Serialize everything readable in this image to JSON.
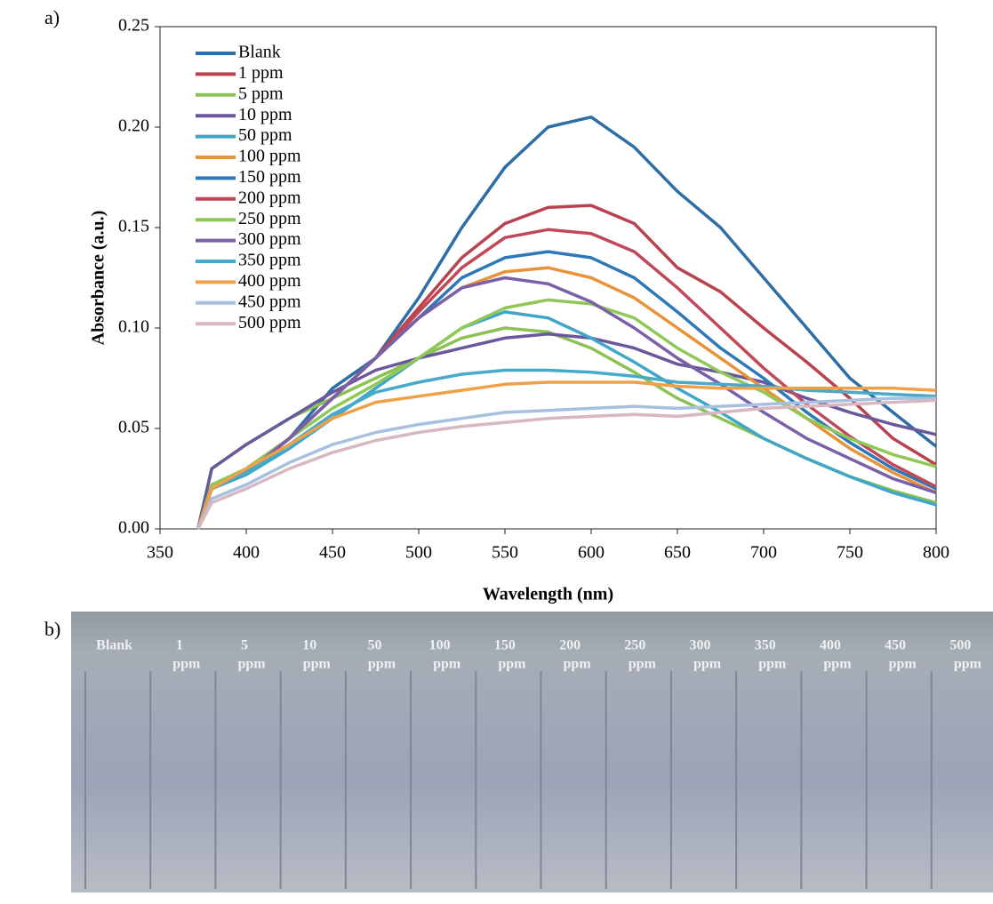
{
  "panel_labels": [
    "a)",
    "b)"
  ],
  "chart_data": {
    "type": "line",
    "x_label": "Wavelength (nm)",
    "y_label": "Absorbance (a.u.)",
    "xlim": [
      350,
      800
    ],
    "xticks": [
      350,
      400,
      450,
      500,
      550,
      600,
      650,
      700,
      750,
      800
    ],
    "ylim": [
      0,
      0.25
    ],
    "yticks": [
      {
        "value": 0,
        "label": "0.00"
      },
      {
        "value": 0.05,
        "label": "0.05"
      },
      {
        "value": 0.1,
        "label": "0.10"
      },
      {
        "value": 0.15,
        "label": "0.15"
      },
      {
        "value": 0.2,
        "label": "0.20"
      },
      {
        "value": 0.25,
        "label": "0.25"
      }
    ],
    "grid": false,
    "legend": "upper-left",
    "x": [
      372,
      380,
      400,
      425,
      450,
      475,
      500,
      525,
      550,
      575,
      600,
      625,
      650,
      675,
      700,
      725,
      750,
      775,
      800
    ],
    "series": [
      {
        "name": "Blank",
        "color": "#2e6ea6",
        "values": [
          0,
          0.02,
          0.028,
          0.045,
          0.07,
          0.085,
          0.115,
          0.15,
          0.18,
          0.2,
          0.205,
          0.19,
          0.168,
          0.15,
          0.125,
          0.1,
          0.075,
          0.058,
          0.041
        ]
      },
      {
        "name": "1 ppm",
        "color": "#b8434e",
        "values": [
          0,
          0.02,
          0.03,
          0.045,
          0.065,
          0.085,
          0.11,
          0.135,
          0.152,
          0.16,
          0.161,
          0.152,
          0.13,
          0.118,
          0.1,
          0.083,
          0.065,
          0.045,
          0.032
        ]
      },
      {
        "name": "5 ppm",
        "color": "#8cc153",
        "values": [
          0,
          0.03,
          0.042,
          0.055,
          0.065,
          0.075,
          0.085,
          0.095,
          0.1,
          0.098,
          0.09,
          0.078,
          0.065,
          0.055,
          0.045,
          0.035,
          0.026,
          0.019,
          0.013
        ]
      },
      {
        "name": "10 ppm",
        "color": "#6b579b",
        "values": [
          0,
          0.03,
          0.042,
          0.055,
          0.068,
          0.079,
          0.085,
          0.09,
          0.095,
          0.097,
          0.095,
          0.09,
          0.082,
          0.078,
          0.073,
          0.065,
          0.058,
          0.052,
          0.047
        ]
      },
      {
        "name": "50 ppm",
        "color": "#3ea6c6",
        "values": [
          0,
          0.02,
          0.027,
          0.04,
          0.055,
          0.07,
          0.085,
          0.1,
          0.108,
          0.105,
          0.095,
          0.083,
          0.07,
          0.058,
          0.045,
          0.035,
          0.026,
          0.018,
          0.012
        ]
      },
      {
        "name": "100 ppm",
        "color": "#e8923a",
        "values": [
          0,
          0.02,
          0.03,
          0.045,
          0.065,
          0.085,
          0.105,
          0.12,
          0.128,
          0.13,
          0.125,
          0.115,
          0.1,
          0.085,
          0.07,
          0.055,
          0.04,
          0.028,
          0.018
        ]
      },
      {
        "name": "150 ppm",
        "color": "#2e78b8",
        "values": [
          0,
          0.02,
          0.028,
          0.045,
          0.065,
          0.085,
          0.105,
          0.125,
          0.135,
          0.138,
          0.135,
          0.125,
          0.108,
          0.09,
          0.075,
          0.058,
          0.043,
          0.03,
          0.02
        ]
      },
      {
        "name": "200 ppm",
        "color": "#c04858",
        "values": [
          0,
          0.02,
          0.028,
          0.045,
          0.065,
          0.085,
          0.108,
          0.13,
          0.145,
          0.149,
          0.147,
          0.138,
          0.12,
          0.1,
          0.08,
          0.062,
          0.046,
          0.032,
          0.021
        ]
      },
      {
        "name": "250 ppm",
        "color": "#90c858",
        "values": [
          0,
          0.022,
          0.03,
          0.045,
          0.06,
          0.072,
          0.085,
          0.1,
          0.11,
          0.114,
          0.112,
          0.105,
          0.09,
          0.078,
          0.068,
          0.055,
          0.045,
          0.037,
          0.031
        ]
      },
      {
        "name": "300 ppm",
        "color": "#7a60a8",
        "values": [
          0,
          0.02,
          0.028,
          0.045,
          0.065,
          0.085,
          0.105,
          0.12,
          0.125,
          0.122,
          0.113,
          0.1,
          0.085,
          0.072,
          0.058,
          0.045,
          0.035,
          0.025,
          0.018
        ]
      },
      {
        "name": "350 ppm",
        "color": "#48aac8",
        "values": [
          0,
          0.02,
          0.028,
          0.042,
          0.057,
          0.068,
          0.073,
          0.077,
          0.079,
          0.079,
          0.078,
          0.076,
          0.073,
          0.072,
          0.071,
          0.069,
          0.068,
          0.067,
          0.066
        ]
      },
      {
        "name": "400 ppm",
        "color": "#f0a048",
        "values": [
          0,
          0.02,
          0.03,
          0.042,
          0.055,
          0.063,
          0.066,
          0.069,
          0.072,
          0.073,
          0.073,
          0.073,
          0.071,
          0.07,
          0.07,
          0.07,
          0.07,
          0.07,
          0.069
        ]
      },
      {
        "name": "450 ppm",
        "color": "#a8c0e0",
        "values": [
          0,
          0.015,
          0.022,
          0.033,
          0.042,
          0.048,
          0.052,
          0.055,
          0.058,
          0.059,
          0.06,
          0.061,
          0.06,
          0.061,
          0.062,
          0.063,
          0.064,
          0.065,
          0.065
        ]
      },
      {
        "name": "500 ppm",
        "color": "#d8b8c0",
        "values": [
          0,
          0.013,
          0.02,
          0.03,
          0.038,
          0.044,
          0.048,
          0.051,
          0.053,
          0.055,
          0.056,
          0.057,
          0.056,
          0.058,
          0.06,
          0.061,
          0.062,
          0.063,
          0.064
        ]
      }
    ]
  },
  "photo": {
    "cuvettes": [
      {
        "concentration": "Blank"
      },
      {
        "concentration": "1",
        "unit": "ppm"
      },
      {
        "concentration": "5",
        "unit": "ppm"
      },
      {
        "concentration": "10",
        "unit": "ppm"
      },
      {
        "concentration": "50",
        "unit": "ppm"
      },
      {
        "concentration": "100",
        "unit": "ppm"
      },
      {
        "concentration": "150",
        "unit": "ppm"
      },
      {
        "concentration": "200",
        "unit": "ppm"
      },
      {
        "concentration": "250",
        "unit": "ppm"
      },
      {
        "concentration": "300",
        "unit": "ppm"
      },
      {
        "concentration": "350",
        "unit": "ppm"
      },
      {
        "concentration": "400",
        "unit": "ppm"
      },
      {
        "concentration": "450",
        "unit": "ppm"
      },
      {
        "concentration": "500",
        "unit": "ppm"
      }
    ]
  }
}
